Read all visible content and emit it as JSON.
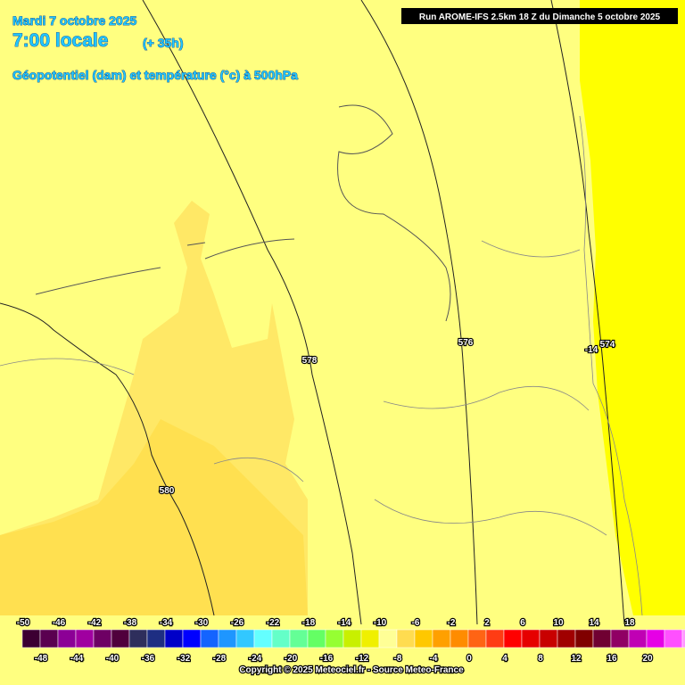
{
  "header": {
    "date": "Mardi 7 octobre 2025",
    "time": "7:00 locale",
    "lead": "(+ 35h)",
    "field": "Géopotentiel (dam) et température (°c) à 500hPa"
  },
  "run": "Run AROME-IFS 2.5km 18 Z du Dimanche 5 octobre 2025",
  "contour_labels": [
    578,
    576,
    574,
    -14,
    580
  ],
  "colorbar": {
    "values": [
      -50,
      -48,
      -46,
      -44,
      -42,
      -40,
      -38,
      -36,
      -34,
      -32,
      -30,
      -28,
      -26,
      -24,
      -22,
      -20,
      -18,
      -16,
      -14,
      -12,
      -10,
      -8,
      -6,
      -4,
      -2,
      0,
      2,
      4,
      6,
      8,
      10,
      12,
      14,
      16,
      18,
      20
    ],
    "colors": [
      "#3c0032",
      "#5a0050",
      "#8c0096",
      "#a000a0",
      "#6e0064",
      "#50003c",
      "#2e2e5c",
      "#1e2e82",
      "#0000c8",
      "#0000ff",
      "#1464ff",
      "#1e96ff",
      "#32c8ff",
      "#64ffff",
      "#64ffc8",
      "#64ff96",
      "#64ff64",
      "#96ff32",
      "#c8f000",
      "#f0f000",
      "#ffff96",
      "#ffdc50",
      "#ffc800",
      "#ffa000",
      "#ff8c00",
      "#ff6414",
      "#ff3c14",
      "#ff0000",
      "#e60000",
      "#c80000",
      "#a00000",
      "#800000",
      "#700032",
      "#900064",
      "#c000b4",
      "#e600e6",
      "#ff50ff",
      "#ff96ff"
    ]
  },
  "copyright": "Copyright © 2025 Meteociel.fr - Source Meteo-France"
}
